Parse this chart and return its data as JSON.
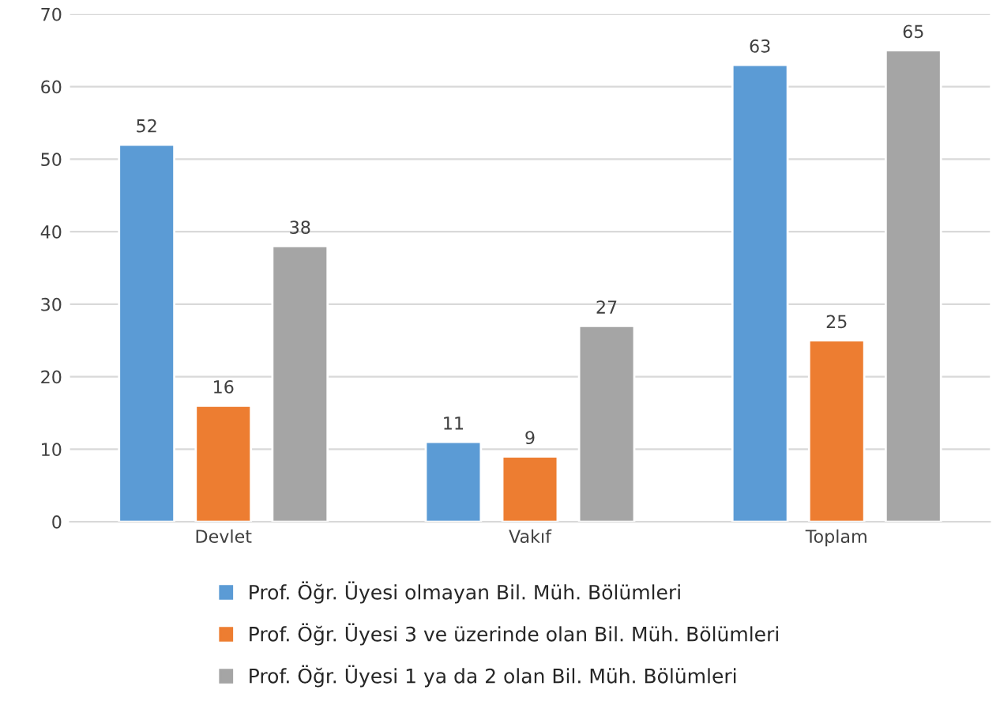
{
  "chart_data": {
    "type": "bar",
    "categories": [
      "Devlet",
      "Vakıf",
      "Toplam"
    ],
    "series": [
      {
        "name": "Prof. Öğr. Üyesi olmayan Bil. Müh. Bölümleri",
        "color": "#5b9bd5",
        "values": [
          52,
          11,
          63
        ]
      },
      {
        "name": "Prof. Öğr. Üyesi 3 ve üzerinde olan Bil. Müh. Bölümleri",
        "color": "#ed7d31",
        "values": [
          16,
          9,
          25
        ]
      },
      {
        "name": "Prof. Öğr. Üyesi 1 ya da 2 olan Bil. Müh. Bölümleri",
        "color": "#a5a5a5",
        "values": [
          38,
          27,
          65
        ]
      }
    ],
    "ylim": [
      0,
      70
    ],
    "yticks": [
      0,
      10,
      20,
      30,
      40,
      50,
      60,
      70
    ],
    "grid": "y",
    "legend": "bottom",
    "data_labels": true
  }
}
